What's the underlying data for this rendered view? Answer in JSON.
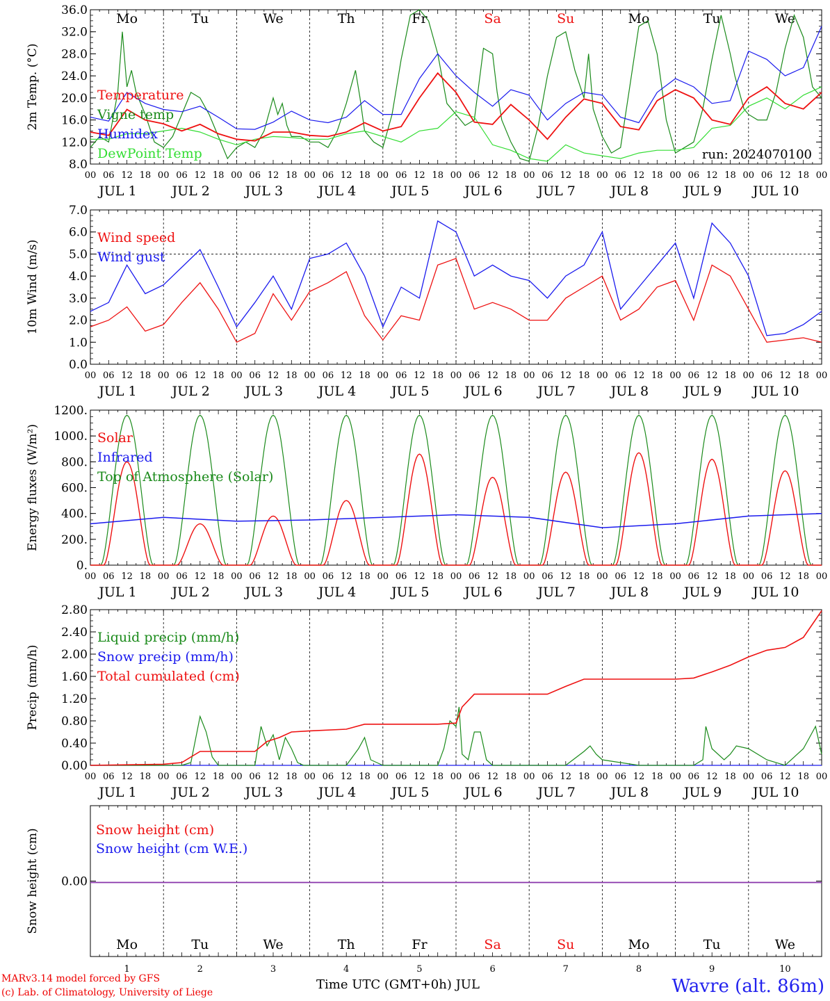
{
  "run_label": "run: 2024070100",
  "x_axis_title": "Time UTC (GMT+0h) JUL",
  "credit_line_1": "MARv3.14 model forced by GFS",
  "credit_line_2": "(c) Lab. of Climatology, University of Liege",
  "station": "Wavre (alt. 86m)",
  "days": [
    {
      "name": "Mo",
      "date": "JUL  1",
      "num": "1",
      "weekend": false
    },
    {
      "name": "Tu",
      "date": "JUL  2",
      "num": "2",
      "weekend": false
    },
    {
      "name": "We",
      "date": "JUL  3",
      "num": "3",
      "weekend": false
    },
    {
      "name": "Th",
      "date": "JUL  4",
      "num": "4",
      "weekend": false
    },
    {
      "name": "Fr",
      "date": "JUL  5",
      "num": "5",
      "weekend": false
    },
    {
      "name": "Sa",
      "date": "JUL  6",
      "num": "6",
      "weekend": true
    },
    {
      "name": "Su",
      "date": "JUL  7",
      "num": "7",
      "weekend": true
    },
    {
      "name": "Mo",
      "date": "JUL  8",
      "num": "8",
      "weekend": false
    },
    {
      "name": "Tu",
      "date": "JUL  9",
      "num": "9",
      "weekend": false
    },
    {
      "name": "We",
      "date": "JUL 10",
      "num": "10",
      "weekend": false
    }
  ],
  "hour_ticks": [
    "00",
    "06",
    "12",
    "18"
  ],
  "colors": {
    "red": "#ee1111",
    "blue": "#1a1aee",
    "dark_green": "#1a8a1a",
    "light_green": "#33dd33",
    "purple": "#8833aa",
    "weekend": "#ee1111"
  },
  "chart_data": [
    {
      "type": "line",
      "ylabel": "2m Temp. (°C)",
      "ylim": [
        8,
        36
      ],
      "yticks": [
        8,
        12,
        16,
        20,
        24,
        28,
        32,
        36
      ],
      "ytick_labels": [
        "8.0",
        "12.0",
        "16.0",
        "20.0",
        "24.0",
        "28.0",
        "32.0",
        "36.0"
      ],
      "x_unit": "hours since JUL 1 00 UTC",
      "series": [
        {
          "name": "Temperature",
          "color": "#ee1111",
          "x": [
            0,
            6,
            12,
            18,
            24,
            30,
            36,
            42,
            48,
            54,
            60,
            66,
            72,
            78,
            84,
            90,
            96,
            102,
            108,
            114,
            120,
            126,
            132,
            138,
            144,
            150,
            156,
            162,
            168,
            174,
            180,
            186,
            192,
            198,
            204,
            210,
            216,
            222,
            228,
            234,
            240
          ],
          "y": [
            13.8,
            13.2,
            17.9,
            16.0,
            15.3,
            14.0,
            15.2,
            13.5,
            12.5,
            12.2,
            13.8,
            13.8,
            13.2,
            13.0,
            13.8,
            15.5,
            14.0,
            14.8,
            20.0,
            24.5,
            21.0,
            15.6,
            15.2,
            18.8,
            16.0,
            12.5,
            16.5,
            19.8,
            19.0,
            14.8,
            14.2,
            19.5,
            21.5,
            20.0,
            16.0,
            15.2,
            20.0,
            22.0,
            19.0,
            18.0,
            21.0
          ]
        },
        {
          "name": "Vigne temp",
          "color": "#1a8a1a",
          "x": [
            0,
            3,
            6,
            9,
            10.5,
            12,
            13.5,
            15,
            18,
            21,
            24,
            27,
            30,
            33,
            36,
            39,
            42,
            45,
            48,
            51,
            54,
            57,
            60,
            61.5,
            63,
            64.5,
            66,
            69,
            72,
            75,
            78,
            81,
            84,
            87,
            88.5,
            90,
            93,
            96,
            99,
            102,
            105,
            108,
            111,
            114,
            117,
            120,
            123,
            126,
            129,
            132,
            133.5,
            135,
            138,
            141,
            144,
            147,
            150,
            153,
            156,
            159,
            162,
            163.5,
            165,
            168,
            171,
            174,
            177,
            180,
            183,
            186,
            189,
            192,
            195,
            198,
            201,
            204,
            207,
            210,
            211.5,
            213,
            214.5,
            216,
            219,
            222,
            225,
            228,
            231,
            234,
            237,
            240
          ],
          "y": [
            11,
            13,
            12,
            21,
            32,
            22,
            25,
            21,
            17,
            12,
            11,
            13,
            17,
            21,
            20,
            17,
            13,
            9,
            11,
            12,
            11,
            14,
            20,
            17,
            19,
            15,
            13,
            13,
            12,
            12,
            11,
            14,
            19,
            25,
            20,
            14,
            12,
            11,
            17,
            27,
            35,
            36,
            34,
            28,
            19,
            17,
            15,
            16,
            29,
            28,
            21,
            16,
            12,
            9,
            8.5,
            15,
            24,
            31,
            32,
            25,
            20,
            28,
            18,
            13,
            10,
            11,
            22,
            33,
            34,
            28,
            16,
            10,
            11,
            12,
            18,
            27,
            35,
            28,
            24,
            21,
            18,
            17,
            16,
            16,
            21,
            29,
            35,
            31,
            22,
            20
          ]
        },
        {
          "name": "Humidex",
          "color": "#1a1aee",
          "x": [
            0,
            6,
            12,
            18,
            24,
            30,
            36,
            42,
            48,
            54,
            60,
            66,
            72,
            78,
            84,
            90,
            96,
            102,
            108,
            114,
            120,
            126,
            132,
            138,
            144,
            150,
            156,
            162,
            168,
            174,
            180,
            186,
            192,
            198,
            204,
            210,
            216,
            222,
            228,
            234,
            240
          ],
          "y": [
            16.5,
            15.8,
            21.0,
            19.0,
            17.9,
            17.5,
            18.5,
            16.5,
            14.4,
            14.3,
            15.6,
            17.6,
            16.0,
            15.5,
            16.5,
            19.5,
            17.0,
            17.0,
            23.5,
            28.0,
            24.0,
            21.0,
            18.5,
            21.5,
            20.5,
            16.0,
            19.0,
            21.0,
            20.5,
            16.5,
            15.5,
            21.0,
            23.5,
            22.0,
            19.0,
            19.5,
            28.5,
            27.0,
            24.0,
            25.5,
            33.0
          ]
        },
        {
          "name": "DewPoint Temp",
          "color": "#33dd33",
          "x": [
            0,
            6,
            12,
            18,
            24,
            30,
            36,
            42,
            48,
            54,
            60,
            66,
            72,
            78,
            84,
            90,
            96,
            102,
            108,
            114,
            120,
            126,
            132,
            138,
            144,
            150,
            156,
            162,
            168,
            174,
            180,
            186,
            192,
            198,
            204,
            210,
            216,
            222,
            228,
            234,
            240
          ],
          "y": [
            12.5,
            12.5,
            13.5,
            13.5,
            14.0,
            14.5,
            13.8,
            12.5,
            11.5,
            12.5,
            13.0,
            12.8,
            12.5,
            12.5,
            13.5,
            14.0,
            13.0,
            12.0,
            14.0,
            14.5,
            17.5,
            16.5,
            11.5,
            10.5,
            9.0,
            8.5,
            11.5,
            10.0,
            9.5,
            9.0,
            10.0,
            10.5,
            10.5,
            11.0,
            14.5,
            15.0,
            18.5,
            20.0,
            18.0,
            20.5,
            22.0
          ]
        }
      ]
    },
    {
      "type": "line",
      "ylabel": "10m Wind (m/s)",
      "ylim": [
        0,
        7
      ],
      "yticks": [
        0,
        1,
        2,
        3,
        4,
        5,
        6,
        7
      ],
      "ytick_labels": [
        "0.0",
        "1.0",
        "2.0",
        "3.0",
        "4.0",
        "5.0",
        "6.0",
        "7.0"
      ],
      "reference_line": 5,
      "x_unit": "hours since JUL 1 00 UTC",
      "series": [
        {
          "name": "Wind speed",
          "color": "#ee1111",
          "x": [
            0,
            6,
            12,
            18,
            24,
            30,
            36,
            42,
            48,
            54,
            60,
            66,
            72,
            78,
            84,
            90,
            96,
            102,
            108,
            114,
            120,
            126,
            132,
            138,
            144,
            150,
            156,
            162,
            168,
            174,
            180,
            186,
            192,
            198,
            204,
            210,
            216,
            222,
            228,
            234,
            240
          ],
          "y": [
            1.7,
            2.0,
            2.6,
            1.5,
            1.8,
            2.8,
            3.7,
            2.5,
            1.0,
            1.4,
            3.2,
            2.0,
            3.3,
            3.7,
            4.2,
            2.2,
            1.1,
            2.2,
            2.0,
            4.5,
            4.8,
            2.5,
            2.8,
            2.5,
            2.0,
            2.0,
            3.0,
            3.5,
            4.0,
            2.0,
            2.5,
            3.5,
            3.8,
            2.0,
            4.5,
            4.0,
            2.5,
            1.0,
            1.1,
            1.2,
            1.0
          ]
        },
        {
          "name": "Wind gust",
          "color": "#1a1aee",
          "x": [
            0,
            6,
            12,
            18,
            24,
            30,
            36,
            42,
            48,
            54,
            60,
            66,
            72,
            78,
            84,
            90,
            96,
            102,
            108,
            114,
            120,
            126,
            132,
            138,
            144,
            150,
            156,
            162,
            168,
            174,
            180,
            186,
            192,
            198,
            204,
            210,
            216,
            222,
            228,
            234,
            240
          ],
          "y": [
            2.4,
            2.8,
            4.5,
            3.2,
            3.6,
            4.4,
            5.2,
            3.5,
            1.7,
            2.8,
            4.0,
            2.5,
            4.8,
            5.0,
            5.5,
            4.0,
            1.7,
            3.5,
            3.0,
            6.5,
            6.0,
            4.0,
            4.5,
            4.0,
            3.8,
            3.0,
            4.0,
            4.5,
            6.0,
            2.5,
            3.5,
            4.5,
            5.5,
            3.0,
            6.4,
            5.5,
            4.0,
            1.3,
            1.4,
            1.8,
            2.4
          ]
        }
      ]
    },
    {
      "type": "line",
      "ylabel": "Energy fluxes (W/m²)",
      "ylim": [
        0,
        1200
      ],
      "yticks": [
        0,
        200,
        400,
        600,
        800,
        1000,
        1200
      ],
      "ytick_labels": [
        "0.",
        "200.",
        "400.",
        "600.",
        "800.",
        "1000.",
        "1200."
      ],
      "x_unit": "hours since JUL 1 00 UTC",
      "series": [
        {
          "name": "Solar",
          "color": "#ee1111",
          "daily_peak": [
            800,
            320,
            380,
            500,
            860,
            680,
            720,
            870,
            820,
            730
          ]
        },
        {
          "name": "Infrared",
          "color": "#1a1aee",
          "x": [
            0,
            24,
            48,
            72,
            96,
            120,
            144,
            168,
            192,
            216,
            240
          ],
          "y": [
            320,
            370,
            340,
            350,
            370,
            390,
            370,
            290,
            320,
            380,
            400
          ]
        },
        {
          "name": "Top of Atmosphere (Solar)",
          "color": "#1a8a1a",
          "daily_peak": [
            1160,
            1160,
            1160,
            1160,
            1160,
            1160,
            1160,
            1160,
            1160,
            1160
          ]
        }
      ]
    },
    {
      "type": "line",
      "ylabel": "Precip (mm/h)",
      "ylim": [
        0,
        2.8
      ],
      "yticks": [
        0,
        0.4,
        0.8,
        1.2,
        1.6,
        2.0,
        2.4,
        2.8
      ],
      "ytick_labels": [
        "0.00",
        "0.40",
        "0.80",
        "1.20",
        "1.60",
        "2.00",
        "2.40",
        "2.80"
      ],
      "x_unit": "hours since JUL 1 00 UTC",
      "series": [
        {
          "name": "Liquid precip (mm/h)",
          "color": "#1a8a1a",
          "x": [
            0,
            30,
            33,
            36,
            38,
            40,
            42,
            48,
            54,
            56,
            58,
            60,
            62,
            64,
            66,
            68,
            70,
            72,
            84,
            86,
            88,
            90,
            92,
            94,
            96,
            114,
            116,
            118,
            120,
            121,
            122,
            124,
            126,
            128,
            130,
            132,
            136,
            144,
            150,
            156,
            162,
            164,
            166,
            168,
            174,
            180,
            186,
            192,
            198,
            201,
            202,
            204,
            208,
            210,
            212,
            216,
            222,
            228,
            234,
            236,
            238,
            240
          ],
          "y": [
            0,
            0,
            0.05,
            0.88,
            0.6,
            0.15,
            0,
            0,
            0,
            0.7,
            0.35,
            0.55,
            0.1,
            0.5,
            0.3,
            0.05,
            0,
            0,
            0,
            0.15,
            0.3,
            0.5,
            0.1,
            0.05,
            0,
            0,
            0.3,
            0.8,
            0.7,
            1.05,
            0.2,
            0.1,
            0.6,
            0.6,
            0.1,
            0,
            0,
            0,
            0,
            0,
            0.25,
            0.35,
            0.2,
            0.1,
            0.05,
            0,
            0,
            0,
            0,
            0.1,
            0.7,
            0.3,
            0.1,
            0.2,
            0.35,
            0.3,
            0.1,
            0,
            0.3,
            0.5,
            0.7,
            0.2
          ]
        },
        {
          "name": "Snow precip (mm/h)",
          "color": "#1a1aee",
          "x": [
            0,
            240
          ],
          "y": [
            0,
            0
          ]
        },
        {
          "name": "Total cumulated (cm)",
          "color": "#ee1111",
          "x": [
            0,
            12,
            24,
            30,
            33,
            36,
            54,
            58,
            62,
            66,
            72,
            84,
            90,
            96,
            114,
            120,
            122,
            126,
            132,
            150,
            156,
            162,
            168,
            180,
            192,
            198,
            204,
            210,
            216,
            222,
            228,
            234,
            240
          ],
          "y": [
            0,
            0.01,
            0.02,
            0.05,
            0.15,
            0.25,
            0.25,
            0.43,
            0.5,
            0.6,
            0.62,
            0.65,
            0.74,
            0.74,
            0.74,
            0.76,
            1.05,
            1.28,
            1.28,
            1.28,
            1.42,
            1.55,
            1.55,
            1.55,
            1.55,
            1.57,
            1.68,
            1.8,
            1.95,
            2.07,
            2.12,
            2.3,
            2.78
          ]
        }
      ]
    },
    {
      "type": "line",
      "ylabel": "Snow height (cm)",
      "yticks": [
        0
      ],
      "ytick_labels": [
        "0.00"
      ],
      "x_unit": "hours since JUL 1 00 UTC",
      "series": [
        {
          "name": "Snow height (cm)",
          "color": "#ee1111",
          "x": [
            0,
            240
          ],
          "y": [
            0,
            0
          ]
        },
        {
          "name": "Snow height (cm W.E.)",
          "color": "#1a1aee",
          "x": [
            0,
            240
          ],
          "y": [
            0,
            0
          ]
        }
      ]
    }
  ]
}
